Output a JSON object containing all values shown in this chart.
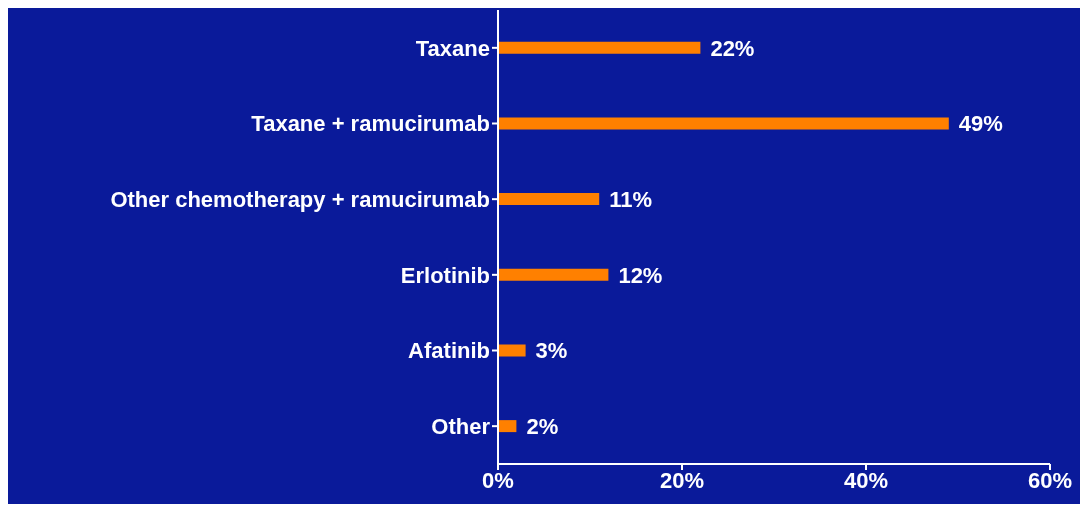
{
  "chart_data": {
    "type": "bar",
    "orientation": "horizontal",
    "categories": [
      "Taxane",
      "Taxane + ramucirumab",
      "Other chemotherapy + ramucirumab",
      "Erlotinib",
      "Afatinib",
      "Other"
    ],
    "values": [
      22,
      49,
      11,
      12,
      3,
      2
    ],
    "value_labels": [
      "22%",
      "49%",
      "11%",
      "12%",
      "3%",
      "2%"
    ],
    "color": "#ff8000",
    "xlim": [
      0,
      60
    ],
    "xticks": [
      {
        "value": 0,
        "label": "0%"
      },
      {
        "value": 20,
        "label": "20%"
      },
      {
        "value": 40,
        "label": "40%"
      },
      {
        "value": 60,
        "label": "60%"
      }
    ],
    "grid": false,
    "legend": false
  }
}
